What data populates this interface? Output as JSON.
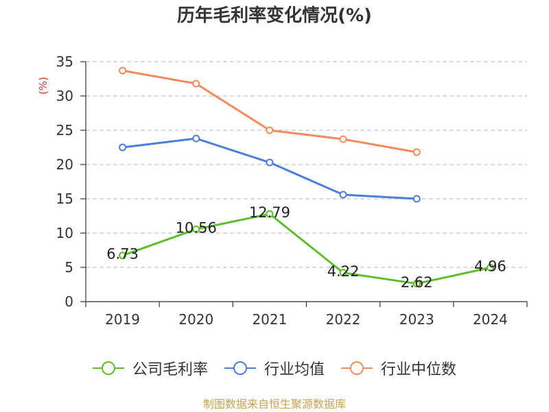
{
  "chart_data": {
    "type": "line",
    "title": "历年毛利率变化情况(%)",
    "xlabel": "",
    "ylabel": "(%)",
    "categories": [
      "2019",
      "2020",
      "2021",
      "2022",
      "2023",
      "2024"
    ],
    "ylim": [
      0,
      35
    ],
    "yticks": [
      0,
      5,
      10,
      15,
      20,
      25,
      30,
      35
    ],
    "grid": true,
    "legend_position": "bottom",
    "series": [
      {
        "name": "公司毛利率",
        "color": "#5cbf2a",
        "values": [
          6.73,
          10.56,
          12.79,
          4.22,
          2.62,
          4.96
        ],
        "labels": [
          "6.73",
          "10.56",
          "12.79",
          "4.22",
          "2.62",
          "4.96"
        ]
      },
      {
        "name": "行业均值",
        "color": "#4a7ddf",
        "values": [
          22.5,
          23.8,
          20.3,
          15.6,
          15.0,
          null
        ]
      },
      {
        "name": "行业中位数",
        "color": "#f58b5a",
        "values": [
          33.7,
          31.8,
          25.0,
          23.7,
          21.8,
          null
        ]
      }
    ]
  },
  "footer": "制图数据来自恒生聚源数据库",
  "colors": {
    "title": "#333333",
    "ylabel": "#d9302a",
    "axis": "#333333",
    "grid": "#c8c8c8",
    "footer": "#c9a14f"
  }
}
